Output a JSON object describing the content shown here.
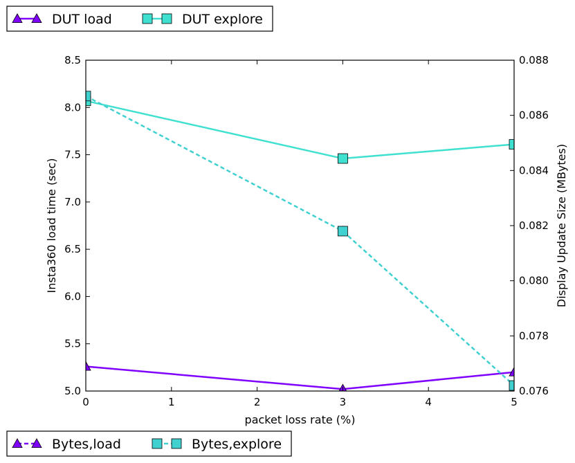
{
  "chart_data": {
    "type": "line",
    "xlabel": "packet loss rate (%)",
    "ylabel_left": "Insta360 load time (sec)",
    "ylabel_right": "Display Update Size (MBytes)",
    "xlim": [
      0,
      5
    ],
    "ylim_left": [
      5.0,
      8.5
    ],
    "ylim_right": [
      0.076,
      0.088
    ],
    "x_ticks": [
      "0",
      "1",
      "2",
      "3",
      "4",
      "5"
    ],
    "y_ticks_left": [
      "5.0",
      "5.5",
      "6.0",
      "6.5",
      "7.0",
      "7.5",
      "8.0",
      "8.5"
    ],
    "y_ticks_right": [
      "0.076",
      "0.078",
      "0.080",
      "0.082",
      "0.084",
      "0.086",
      "0.088"
    ],
    "grid": false,
    "x": [
      0,
      3,
      5
    ],
    "series": [
      {
        "name": "DUT load",
        "axis": "left",
        "values": [
          5.26,
          5.02,
          5.2
        ],
        "color": "#7f00ff",
        "marker": "triangle",
        "linestyle": "solid"
      },
      {
        "name": "DUT explore",
        "axis": "left",
        "values": [
          8.07,
          7.46,
          7.61
        ],
        "color": "#40e0d0",
        "marker": "square",
        "linestyle": "solid"
      },
      {
        "name": "Bytes,load",
        "axis": "right",
        "values": [
          0.0867,
          0.0818,
          0.076
        ],
        "color": "#7f00ff",
        "marker": "triangle",
        "linestyle": "dashed",
        "visible_line": false
      },
      {
        "name": "Bytes,explore",
        "axis": "right",
        "values": [
          0.0867,
          0.0818,
          0.0762
        ],
        "color": "#40d0d0",
        "marker": "square",
        "linestyle": "dashed"
      }
    ],
    "legend_top": [
      "DUT load",
      "DUT explore"
    ],
    "legend_bottom": [
      "Bytes,load",
      "Bytes,explore"
    ],
    "legend_top_placement": "top-left, above plot",
    "legend_bottom_placement": "bottom-left, below plot"
  }
}
